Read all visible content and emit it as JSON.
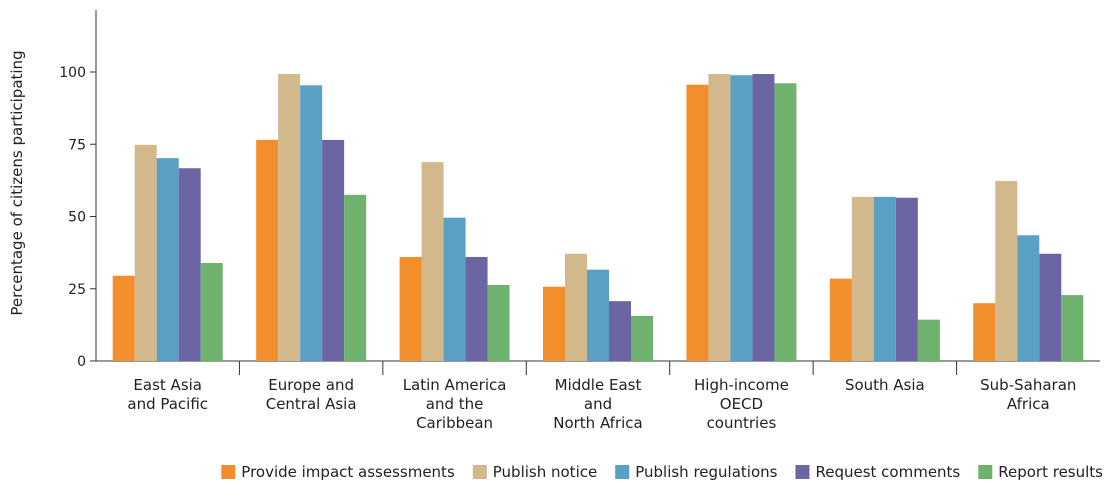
{
  "chart_data": {
    "type": "bar",
    "ylabel": "Percentage of citizens participating",
    "xlabel": "",
    "ylim": [
      0,
      120
    ],
    "yticks": [
      0,
      25,
      50,
      75,
      100
    ],
    "grid": false,
    "legend_position": "bottom",
    "categories": [
      [
        "East Asia",
        "and Pacific"
      ],
      [
        "Europe and",
        "Central Asia"
      ],
      [
        "Latin America",
        "and the",
        "Caribbean"
      ],
      [
        "Middle East",
        "and",
        "North Africa"
      ],
      [
        "High-income",
        "OECD",
        "countries"
      ],
      [
        "South Asia"
      ],
      [
        "Sub-Saharan",
        "Africa"
      ]
    ],
    "series": [
      {
        "name": "Provide impact assessments",
        "color": "#f28e2b",
        "values": [
          29.5,
          76.5,
          36,
          25.7,
          95.6,
          28.5,
          20
        ]
      },
      {
        "name": "Publish notice",
        "color": "#d3b88c",
        "values": [
          74.8,
          99.3,
          68.8,
          37.1,
          99.3,
          56.8,
          62.3
        ]
      },
      {
        "name": "Publish regulations",
        "color": "#59a0c5",
        "values": [
          70.2,
          95.4,
          49.6,
          31.6,
          98.9,
          56.8,
          43.5
        ]
      },
      {
        "name": "Request comments",
        "color": "#6b66a3",
        "values": [
          66.7,
          76.5,
          36,
          20.7,
          99.3,
          56.5,
          37.1
        ]
      },
      {
        "name": "Report results",
        "color": "#6fb26e",
        "values": [
          33.9,
          57.5,
          26.3,
          15.6,
          96.1,
          14.3,
          22.8
        ]
      }
    ]
  }
}
